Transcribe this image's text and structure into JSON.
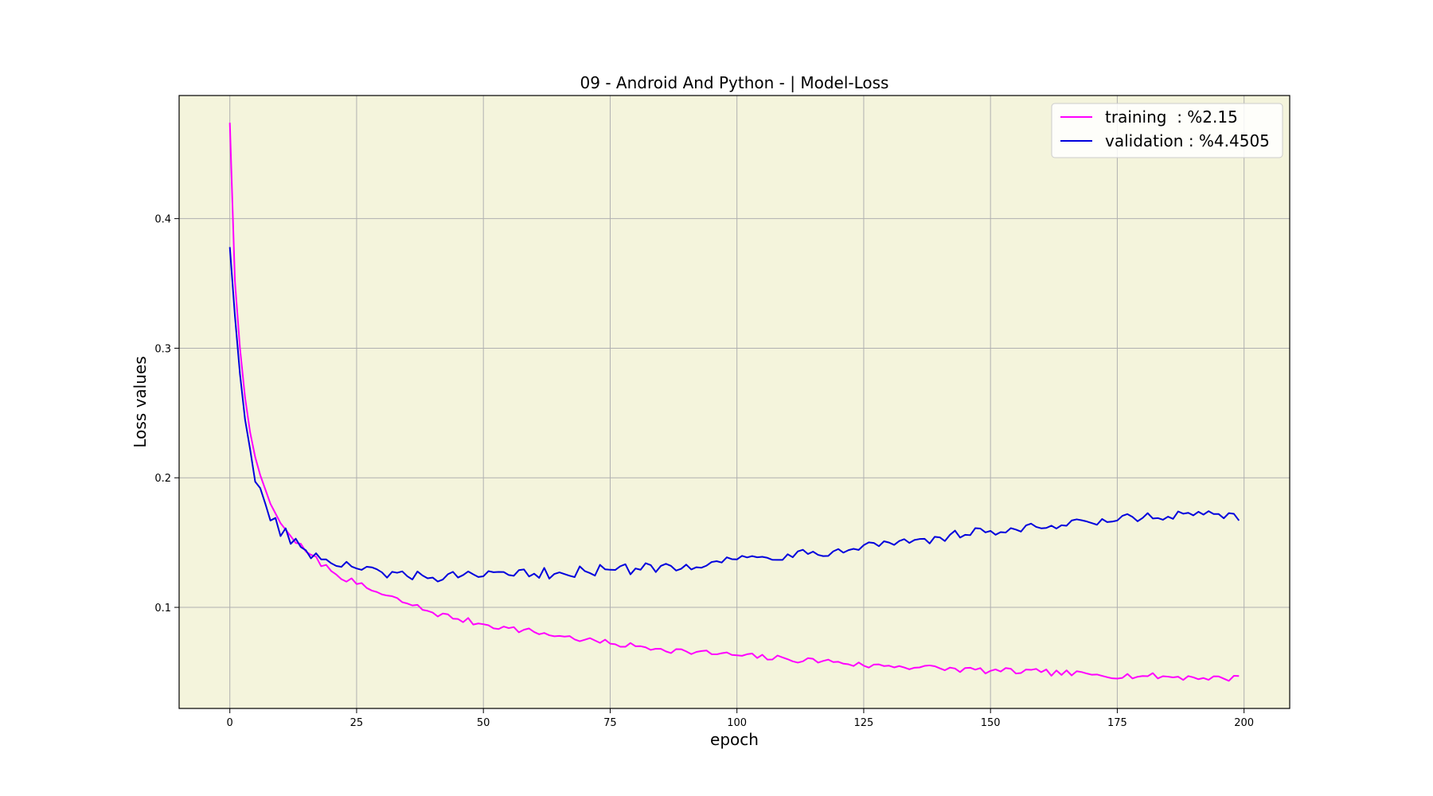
{
  "chart_data": {
    "type": "line",
    "title": "09 - Android And Python - | Model-Loss",
    "xlabel": "epoch",
    "ylabel": "Loss values",
    "xlim": [
      -10,
      209
    ],
    "ylim": [
      0.022,
      0.495
    ],
    "xticks": [
      0,
      25,
      50,
      75,
      100,
      125,
      150,
      175,
      200
    ],
    "yticks": [
      0.1,
      0.2,
      0.3,
      0.4
    ],
    "xtick_labels": [
      "0",
      "25",
      "50",
      "75",
      "100",
      "125",
      "150",
      "175",
      "200"
    ],
    "ytick_labels": [
      "0.1",
      "0.2",
      "0.3",
      "0.4"
    ],
    "grid": true,
    "background": "#f4f4dc",
    "legend_position": "top-right",
    "series": [
      {
        "name": "training  : %2.15",
        "color": "#ff00ff",
        "anchors": [
          [
            0,
            0.474
          ],
          [
            1,
            0.352
          ],
          [
            2,
            0.3
          ],
          [
            3,
            0.262
          ],
          [
            4,
            0.235
          ],
          [
            5,
            0.216
          ],
          [
            6,
            0.202
          ],
          [
            8,
            0.18
          ],
          [
            10,
            0.165
          ],
          [
            12,
            0.155
          ],
          [
            15,
            0.143
          ],
          [
            20,
            0.128
          ],
          [
            25,
            0.118
          ],
          [
            30,
            0.11
          ],
          [
            35,
            0.103
          ],
          [
            40,
            0.096
          ],
          [
            45,
            0.091
          ],
          [
            50,
            0.087
          ],
          [
            55,
            0.084
          ],
          [
            60,
            0.081
          ],
          [
            65,
            0.078
          ],
          [
            70,
            0.075
          ],
          [
            75,
            0.072
          ],
          [
            80,
            0.07
          ],
          [
            85,
            0.068
          ],
          [
            90,
            0.066
          ],
          [
            100,
            0.063
          ],
          [
            110,
            0.06
          ],
          [
            120,
            0.058
          ],
          [
            125,
            0.055
          ],
          [
            130,
            0.055
          ],
          [
            140,
            0.053
          ],
          [
            150,
            0.051
          ],
          [
            160,
            0.05
          ],
          [
            170,
            0.048
          ],
          [
            180,
            0.047
          ],
          [
            190,
            0.046
          ],
          [
            199,
            0.045
          ]
        ],
        "noise": 0.0025,
        "final": 0.047
      },
      {
        "name": "validation : %4.4505",
        "color": "#0000dd",
        "anchors": [
          [
            0,
            0.378
          ],
          [
            1,
            0.325
          ],
          [
            2,
            0.28
          ],
          [
            3,
            0.245
          ],
          [
            4,
            0.222
          ],
          [
            5,
            0.197
          ],
          [
            6,
            0.192
          ],
          [
            7,
            0.18
          ],
          [
            8,
            0.167
          ],
          [
            9,
            0.169
          ],
          [
            10,
            0.155
          ],
          [
            11,
            0.161
          ],
          [
            12,
            0.149
          ],
          [
            13,
            0.153
          ],
          [
            15,
            0.144
          ],
          [
            18,
            0.137
          ],
          [
            20,
            0.134
          ],
          [
            25,
            0.13
          ],
          [
            30,
            0.127
          ],
          [
            35,
            0.124
          ],
          [
            40,
            0.123
          ],
          [
            45,
            0.123
          ],
          [
            50,
            0.124
          ],
          [
            55,
            0.125
          ],
          [
            60,
            0.126
          ],
          [
            65,
            0.127
          ],
          [
            70,
            0.128
          ],
          [
            75,
            0.129
          ],
          [
            80,
            0.13
          ],
          [
            85,
            0.132
          ],
          [
            90,
            0.133
          ],
          [
            95,
            0.135
          ],
          [
            100,
            0.137
          ],
          [
            105,
            0.139
          ],
          [
            110,
            0.141
          ],
          [
            115,
            0.143
          ],
          [
            120,
            0.145
          ],
          [
            125,
            0.148
          ],
          [
            130,
            0.15
          ],
          [
            135,
            0.152
          ],
          [
            140,
            0.154
          ],
          [
            145,
            0.156
          ],
          [
            150,
            0.159
          ],
          [
            155,
            0.16
          ],
          [
            160,
            0.161
          ],
          [
            165,
            0.163
          ],
          [
            170,
            0.165
          ],
          [
            175,
            0.167
          ],
          [
            180,
            0.169
          ],
          [
            185,
            0.17
          ],
          [
            190,
            0.171
          ],
          [
            195,
            0.172
          ],
          [
            199,
            0.167
          ]
        ],
        "noise": 0.0045,
        "final": 0.167
      }
    ]
  }
}
